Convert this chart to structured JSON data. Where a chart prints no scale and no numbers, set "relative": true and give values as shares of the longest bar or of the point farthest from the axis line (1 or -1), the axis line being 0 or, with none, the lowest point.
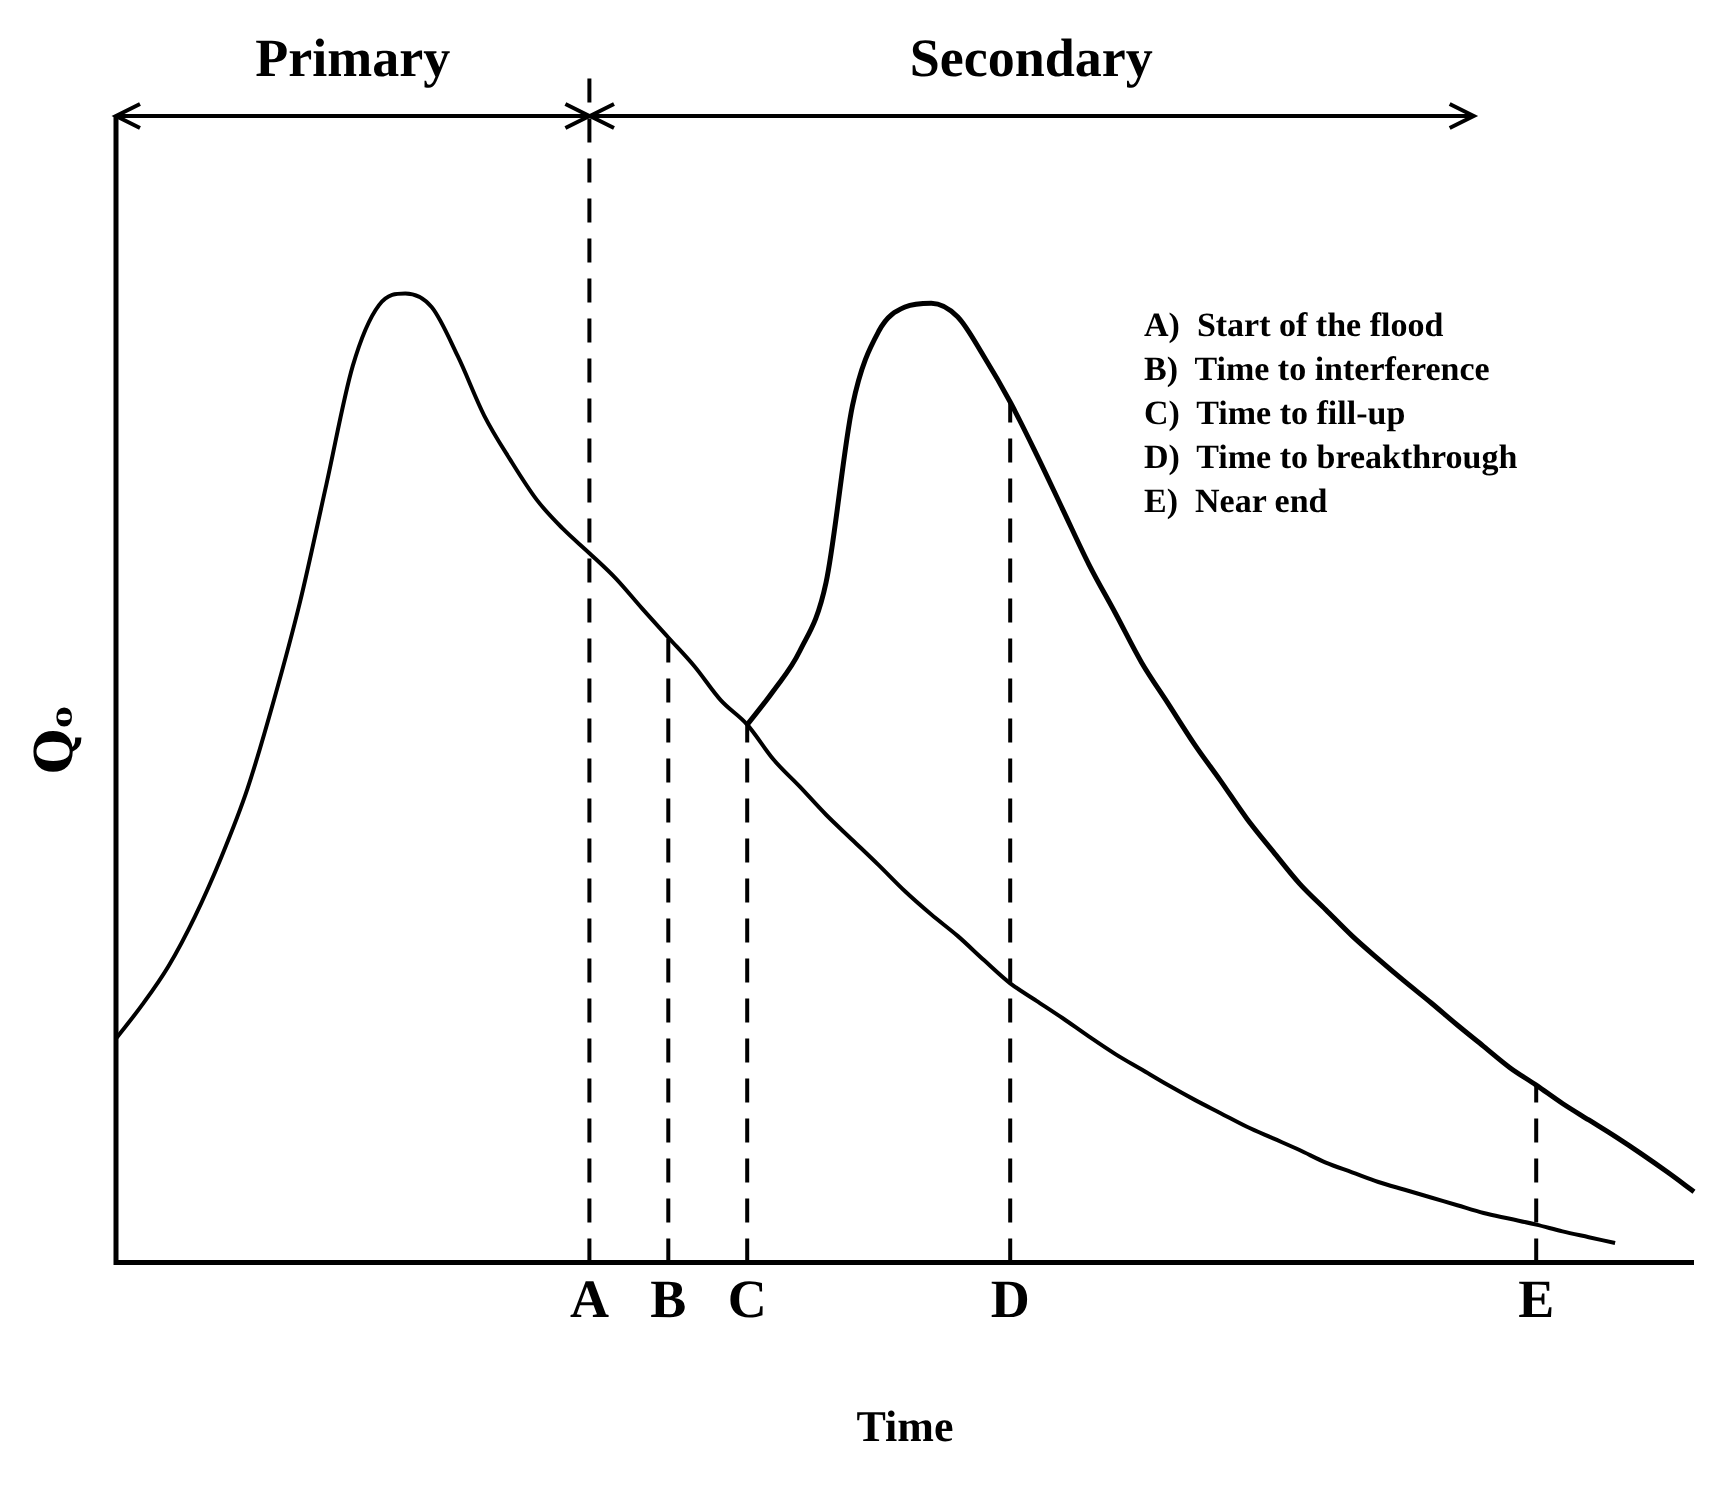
{
  "chart_data": {
    "type": "line",
    "relative": true,
    "xlabel": "Time",
    "ylabel": "Qₒ",
    "categories": [
      null,
      null,
      null,
      null,
      null,
      null,
      null,
      null,
      null,
      null,
      null,
      null,
      null,
      null,
      null,
      null,
      null,
      null,
      "A",
      null,
      null,
      "B",
      null,
      null,
      "C",
      null,
      null,
      null,
      null,
      null,
      null,
      null,
      null,
      null,
      "D",
      null,
      null,
      null,
      null,
      null,
      null,
      null,
      null,
      null,
      null,
      null,
      null,
      null,
      null,
      null,
      null,
      null,
      null,
      null,
      "E",
      null,
      null,
      null,
      null,
      null,
      null
    ],
    "series": [
      {
        "color": "#000000",
        "values": [
          0.231,
          0.266,
          0.306,
          0.357,
          0.418,
          0.489,
          0.58,
          0.682,
          0.803,
          0.925,
          0.988,
          1.0,
          0.986,
          0.935,
          0.874,
          0.828,
          0.787,
          0.757,
          0.732,
          0.706,
          0.675,
          0.645,
          0.615,
          0.58,
          0.555,
          0.519,
          0.491,
          0.462,
          0.436,
          0.41,
          0.383,
          0.359,
          0.337,
          0.312,
          0.288,
          0.27,
          0.252,
          0.233,
          0.215,
          0.199,
          0.183,
          0.168,
          0.154,
          0.14,
          0.128,
          0.116,
          0.103,
          0.093,
          0.083,
          0.075,
          0.067,
          0.059,
          0.051,
          0.045,
          0.039,
          0.032,
          0.026,
          0.02,
          null,
          null,
          null
        ]
      },
      {
        "color": "#000000",
        "values": [
          null,
          null,
          null,
          null,
          null,
          null,
          null,
          null,
          null,
          null,
          null,
          null,
          null,
          null,
          null,
          null,
          null,
          null,
          null,
          null,
          null,
          null,
          null,
          null,
          0.555,
          0.59,
          0.631,
          0.702,
          0.884,
          0.961,
          0.986,
          0.99,
          0.976,
          0.935,
          0.888,
          0.834,
          0.777,
          0.72,
          0.67,
          0.619,
          0.577,
          0.535,
          0.497,
          0.458,
          0.424,
          0.391,
          0.364,
          0.337,
          0.313,
          0.29,
          0.268,
          0.245,
          0.223,
          0.201,
          0.183,
          0.164,
          0.147,
          0.13,
          0.112,
          0.093,
          0.073
        ]
      }
    ],
    "ref_lines": [
      {
        "axis": "x",
        "value": "A",
        "line_style": "dashed"
      },
      {
        "axis": "x",
        "value": "B",
        "line_style": "dashed"
      },
      {
        "axis": "x",
        "value": "C",
        "line_style": "dashed"
      },
      {
        "axis": "x",
        "value": "D",
        "line_style": "dashed"
      },
      {
        "axis": "x",
        "value": "E",
        "line_style": "dashed"
      }
    ],
    "annotations": [
      "Primary",
      "Secondary",
      "A)  Start of the flood",
      "B)  Time to interference",
      "C)  Time to fill-up",
      "D)  Time to breakthrough",
      "E)  Near end"
    ],
    "marker": "none",
    "grid": false,
    "legend": false
  }
}
